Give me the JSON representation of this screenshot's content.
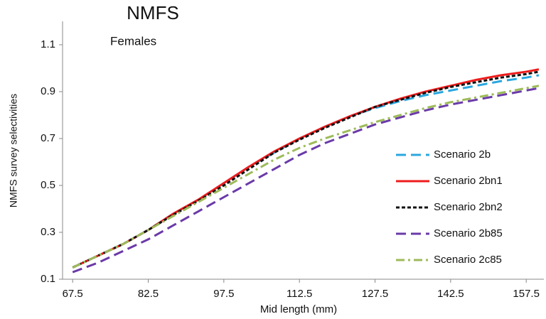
{
  "chart_data": {
    "type": "line",
    "title": "NMFS",
    "subtitle": "Females",
    "x_label": "Mid length (mm)",
    "y_label": "NMFS survey selectivities",
    "x": [
      67.5,
      72.5,
      77.5,
      82.5,
      87.5,
      92.5,
      97.5,
      102.5,
      107.5,
      112.5,
      117.5,
      122.5,
      127.5,
      132.5,
      137.5,
      142.5,
      147.5,
      152.5,
      157.5,
      160
    ],
    "series": [
      {
        "name": "Scenario 2b",
        "color": "#2aa7e0",
        "style": "dashed",
        "values": [
          0.15,
          0.2,
          0.25,
          0.31,
          0.38,
          0.44,
          0.51,
          0.58,
          0.64,
          0.7,
          0.75,
          0.795,
          0.83,
          0.86,
          0.885,
          0.905,
          0.925,
          0.945,
          0.96,
          0.97
        ]
      },
      {
        "name": "Scenario 2bn1",
        "color": "#ee1c1c",
        "style": "solid",
        "values": [
          0.15,
          0.2,
          0.25,
          0.31,
          0.38,
          0.44,
          0.51,
          0.58,
          0.645,
          0.7,
          0.75,
          0.795,
          0.835,
          0.87,
          0.9,
          0.925,
          0.95,
          0.97,
          0.985,
          0.995
        ]
      },
      {
        "name": "Scenario 2bn2",
        "color": "#111111",
        "style": "dotted",
        "values": [
          0.15,
          0.2,
          0.25,
          0.31,
          0.375,
          0.435,
          0.5,
          0.57,
          0.64,
          0.695,
          0.745,
          0.79,
          0.835,
          0.865,
          0.895,
          0.92,
          0.94,
          0.96,
          0.975,
          0.985
        ]
      },
      {
        "name": "Scenario 2b85",
        "color": "#6a3aa8",
        "style": "dashed",
        "values": [
          0.13,
          0.17,
          0.22,
          0.27,
          0.33,
          0.39,
          0.45,
          0.51,
          0.57,
          0.63,
          0.68,
          0.72,
          0.76,
          0.79,
          0.82,
          0.845,
          0.865,
          0.885,
          0.905,
          0.915
        ]
      },
      {
        "name": "Scenario 2c85",
        "color": "#9dbb59",
        "style": "dashdot",
        "values": [
          0.15,
          0.2,
          0.25,
          0.31,
          0.37,
          0.43,
          0.49,
          0.55,
          0.61,
          0.66,
          0.7,
          0.735,
          0.77,
          0.8,
          0.83,
          0.855,
          0.875,
          0.895,
          0.915,
          0.925
        ]
      }
    ],
    "xlim": [
      65.5,
      161
    ],
    "ylim": [
      0.1,
      1.2
    ],
    "xticks": [
      67.5,
      82.5,
      97.5,
      112.5,
      127.5,
      142.5,
      157.5
    ],
    "yticks": [
      0.1,
      0.3,
      0.5,
      0.7,
      0.9,
      1.1
    ],
    "grid": false
  }
}
